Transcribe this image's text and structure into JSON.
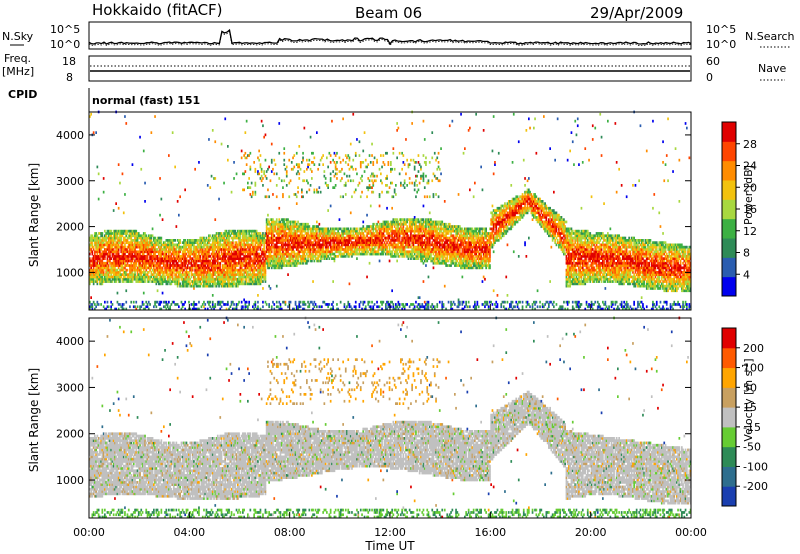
{
  "header": {
    "station": "Hokkaido (fitACF)",
    "beam": "Beam 06",
    "date": "29/Apr/2009"
  },
  "noise_panel": {
    "left_label": "N.Sky",
    "left_ticks": [
      "10^5",
      "10^0"
    ],
    "right_ticks": [
      "10^5",
      "10^0"
    ],
    "right_label": "N.Search"
  },
  "freq_panel": {
    "left_label_line1": "Freq.",
    "left_label_line2": "[MHz]",
    "left_ticks": [
      "18",
      "8"
    ],
    "right_ticks": [
      "60",
      "0"
    ],
    "right_label": "Nave"
  },
  "cpid_panel": {
    "label": "CPID",
    "mode_text": "normal (fast) 151"
  },
  "time_axis": {
    "label": "Time UT",
    "ticks": [
      "00:00",
      "04:00",
      "08:00",
      "12:00",
      "16:00",
      "20:00",
      "00:00"
    ],
    "range_hours": [
      0,
      24
    ]
  },
  "chart_data": [
    {
      "type": "heatmap",
      "name": "power",
      "ylabel": "Slant Range [km]",
      "y_ticks": [
        "1000",
        "2000",
        "3000",
        "4000"
      ],
      "y_tick_values": [
        1000,
        2000,
        3000,
        4000
      ],
      "ylim": [
        180,
        4500
      ],
      "colorbar": {
        "label": "Power [dB]",
        "tick_labels": [
          "4",
          "8",
          "12",
          "16",
          "20",
          "24",
          "28"
        ],
        "tick_values": [
          4,
          8,
          12,
          16,
          20,
          24,
          28
        ],
        "range": [
          0,
          32
        ],
        "colors": [
          "#0000ee",
          "#2a5db0",
          "#2e8b57",
          "#3cb043",
          "#a8d840",
          "#f2c20e",
          "#ff8c00",
          "#ff4500",
          "#e00000"
        ]
      },
      "regions": [
        {
          "t": [
            0,
            16.5
          ],
          "range_km": [
            1000,
            2000
          ],
          "level": "high"
        },
        {
          "t": [
            16.5,
            17.5
          ],
          "range_km": [
            1800,
            2800
          ],
          "level": "mixed"
        },
        {
          "t": [
            17.5,
            24
          ],
          "range_km": [
            600,
            2000
          ],
          "level": "high"
        }
      ]
    },
    {
      "type": "heatmap",
      "name": "velocity",
      "ylabel": "Slant Range [km]",
      "y_ticks": [
        "1000",
        "2000",
        "3000",
        "4000"
      ],
      "y_tick_values": [
        1000,
        2000,
        3000,
        4000
      ],
      "ylim": [
        180,
        4500
      ],
      "colorbar": {
        "label": "Velocity [m s",
        "label_sup": "-1",
        "label_end": "]",
        "tick_labels": [
          "200",
          "100",
          "50",
          "15",
          "-15",
          "-50",
          "-100",
          "-200"
        ],
        "colors": [
          "#1a3fb0",
          "#2e6e8e",
          "#2e8b57",
          "#66cc33",
          "#c0c0c0",
          "#c8a060",
          "#ffa500",
          "#ff5a00",
          "#e00000"
        ]
      },
      "regions": [
        {
          "t": [
            0,
            24
          ],
          "range_km": [
            600,
            2400
          ],
          "level": "near-zero"
        }
      ]
    }
  ]
}
